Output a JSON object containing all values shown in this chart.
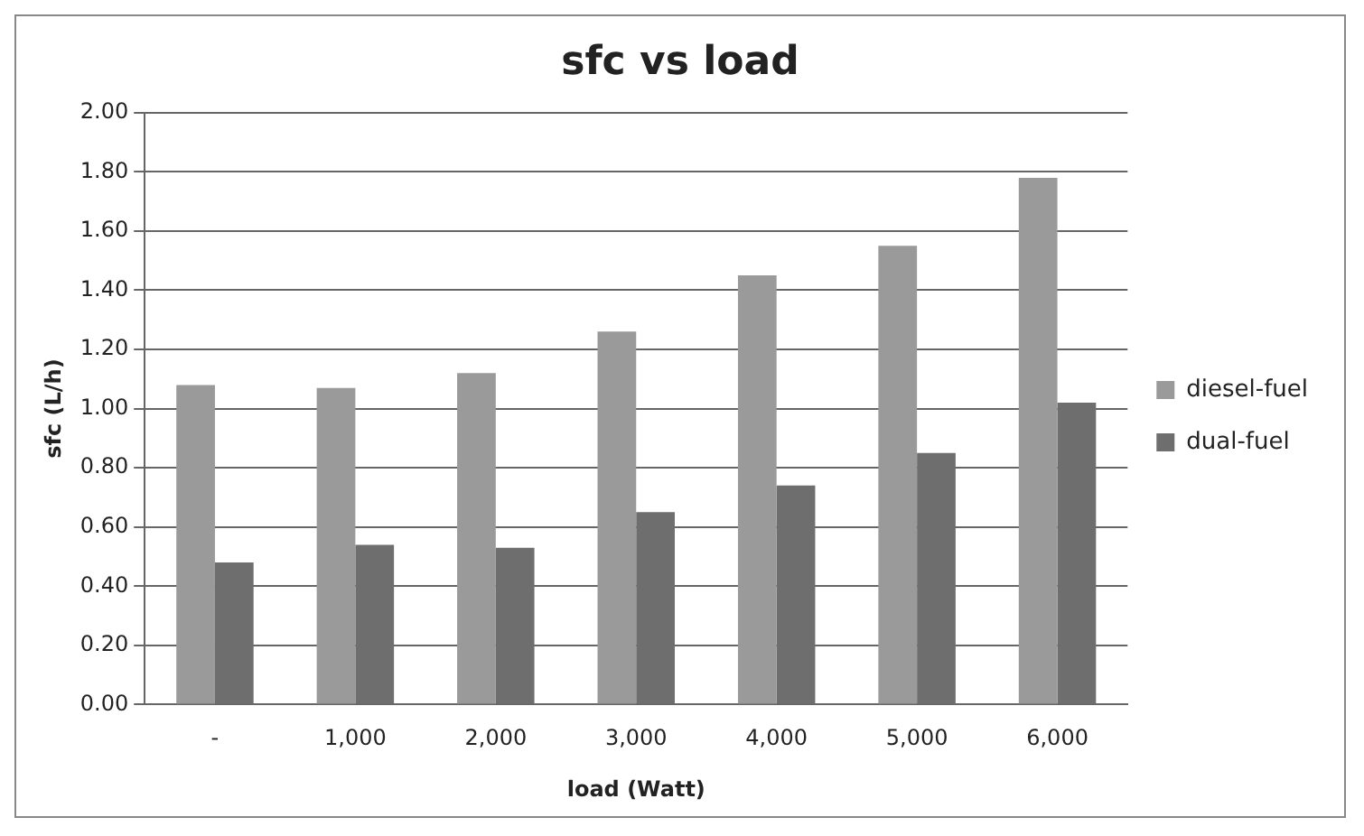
{
  "chart_data": {
    "type": "bar",
    "title": "sfc vs load",
    "xlabel": "load (Watt)",
    "ylabel": "sfc (L/h)",
    "categories": [
      "-",
      "1,000",
      "2,000",
      "3,000",
      "4,000",
      "5,000",
      "6,000"
    ],
    "series": [
      {
        "name": "diesel-fuel",
        "color": "#9a9a9a",
        "values": [
          1.08,
          1.07,
          1.12,
          1.26,
          1.45,
          1.55,
          1.78
        ]
      },
      {
        "name": "dual-fuel",
        "color": "#6e6e6e",
        "values": [
          0.48,
          0.54,
          0.53,
          0.65,
          0.74,
          0.85,
          1.02
        ]
      }
    ],
    "ylim": [
      0,
      2
    ],
    "yticks": [
      {
        "value": 0,
        "label": "0.00"
      },
      {
        "value": 0.2,
        "label": "0.20"
      },
      {
        "value": 0.4,
        "label": "0.40"
      },
      {
        "value": 0.6,
        "label": "0.60"
      },
      {
        "value": 0.8,
        "label": "0.80"
      },
      {
        "value": 1,
        "label": "1.00"
      },
      {
        "value": 1.2,
        "label": "1.20"
      },
      {
        "value": 1.4,
        "label": "1.40"
      },
      {
        "value": 1.6,
        "label": "1.60"
      },
      {
        "value": 1.8,
        "label": "1.80"
      },
      {
        "value": 2,
        "label": "2.00"
      }
    ],
    "grid": "y",
    "legend": "right"
  }
}
